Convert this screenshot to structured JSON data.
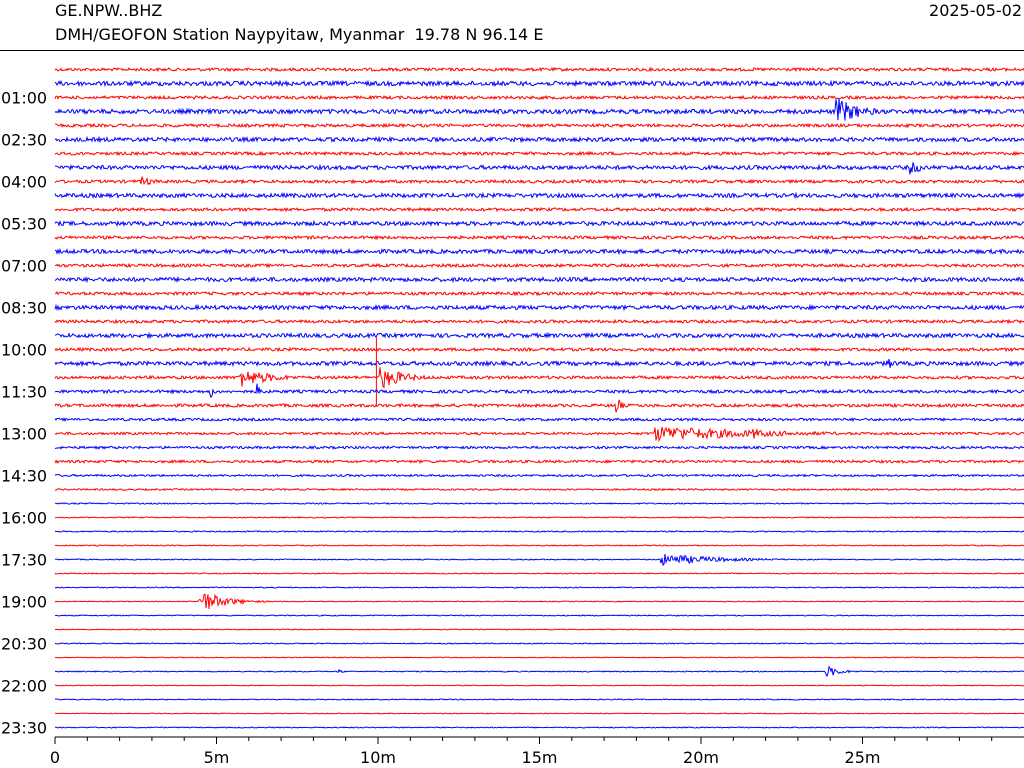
{
  "header": {
    "station_code": "GE.NPW..BHZ",
    "description": "DMH/GEOFON Station Naypyitaw, Myanmar  19.78 N 96.14 E",
    "date": "2025-05-02"
  },
  "colors": {
    "even_trace": "#ff0000",
    "odd_trace": "#0000ff",
    "axis": "#000000"
  },
  "chart_data": {
    "type": "line",
    "title": "",
    "xlabel": "",
    "ylabel": "",
    "x_unit": "minutes",
    "xlim": [
      0,
      30
    ],
    "x_ticks": [
      0,
      5,
      10,
      15,
      20,
      25
    ],
    "x_tick_labels": [
      "0",
      "5m",
      "10m",
      "15m",
      "20m",
      "25m"
    ],
    "minor_tick_step": 1,
    "trace_count": 48,
    "trace_minutes": 30,
    "y_labels": [
      "01:00",
      "02:30",
      "04:00",
      "05:30",
      "07:00",
      "08:30",
      "10:00",
      "11:30",
      "13:00",
      "14:30",
      "16:00",
      "17:30",
      "19:00",
      "20:30",
      "22:00",
      "23:30"
    ],
    "noise_levels": [
      1.5,
      2.2,
      1.5,
      2.2,
      1.5,
      2.0,
      1.5,
      2.0,
      1.5,
      2.0,
      1.5,
      2.0,
      1.5,
      2.0,
      1.5,
      2.0,
      1.5,
      2.0,
      1.5,
      2.0,
      1.5,
      2.0,
      1.5,
      1.5,
      1.5,
      1.3,
      1.2,
      1.2,
      1.3,
      1.0,
      0.8,
      0.6,
      0.5,
      0.6,
      0.5,
      0.5,
      0.5,
      0.5,
      0.4,
      0.5,
      0.4,
      0.5,
      0.4,
      0.5,
      0.4,
      0.5,
      0.4,
      0.5
    ],
    "events": [
      {
        "trace": 3,
        "minute": 24.2,
        "amplitude": 15,
        "duration": 2.5
      },
      {
        "trace": 7,
        "minute": 26.5,
        "amplitude": 7,
        "duration": 1.5
      },
      {
        "trace": 8,
        "minute": 2.7,
        "amplitude": 5,
        "duration": 1.5
      },
      {
        "trace": 21,
        "minute": 25.8,
        "amplitude": 6,
        "duration": 0.8
      },
      {
        "trace": 22,
        "minute": 5.7,
        "amplitude": 10,
        "duration": 3.5
      },
      {
        "trace": 22,
        "minute": 10.1,
        "amplitude": 12,
        "duration": 2.5
      },
      {
        "trace": 23,
        "minute": 4.8,
        "amplitude": 8,
        "duration": 0.4
      },
      {
        "trace": 23,
        "minute": 6.3,
        "amplitude": 8,
        "duration": 0.4
      },
      {
        "trace": 24,
        "minute": 17.4,
        "amplitude": 12,
        "duration": 0.4
      },
      {
        "trace": 26,
        "minute": 18.6,
        "amplitude": 8,
        "duration": 11.4
      },
      {
        "trace": 26,
        "minute": 21.6,
        "amplitude": 6,
        "duration": 2
      },
      {
        "trace": 35,
        "minute": 18.8,
        "amplitude": 6,
        "duration": 6
      },
      {
        "trace": 38,
        "minute": 4.5,
        "amplitude": 12,
        "duration": 2.5
      },
      {
        "trace": 43,
        "minute": 8.8,
        "amplitude": 3,
        "duration": 0.4
      },
      {
        "trace": 43,
        "minute": 23.9,
        "amplitude": 6,
        "duration": 1.5
      }
    ],
    "spike": {
      "trace": 22,
      "minute": 9.95,
      "up": 40,
      "down": 28
    },
    "grid": false
  }
}
